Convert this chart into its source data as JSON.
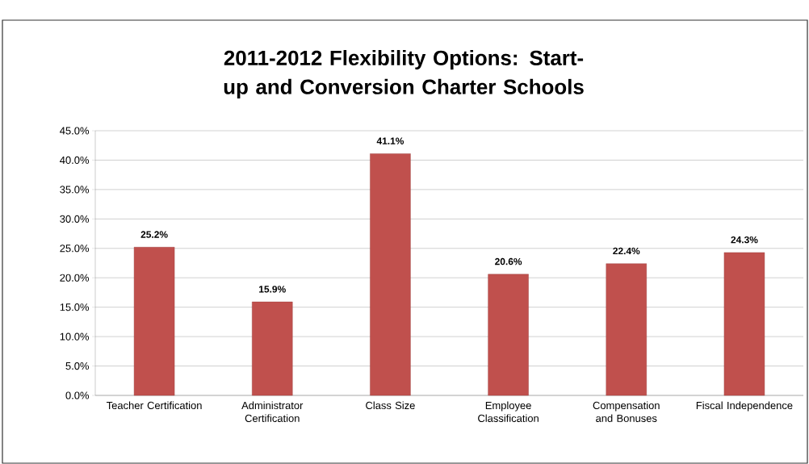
{
  "chart_data": {
    "type": "bar",
    "title": "2011-2012 Flexibility Options: Start-up and Conversion Charter Schools",
    "categories": [
      "Teacher Certification",
      "Administrator Certification",
      "Class Size",
      "Employee Classification",
      "Compensation and Bonuses",
      "Fiscal Independence"
    ],
    "values": [
      25.2,
      15.9,
      41.1,
      20.6,
      22.4,
      24.3
    ],
    "value_labels": [
      "25.2%",
      "15.9%",
      "41.1%",
      "20.6%",
      "22.4%",
      "24.3%"
    ],
    "color": "#c0504d",
    "ylim": [
      0,
      45
    ],
    "yticks": [
      {
        "value": 0,
        "label": "0.0%"
      },
      {
        "value": 5,
        "label": "5.0%"
      },
      {
        "value": 10,
        "label": "10.0%"
      },
      {
        "value": 15,
        "label": "15.0%"
      },
      {
        "value": 20,
        "label": "20.0%"
      },
      {
        "value": 25,
        "label": "25.0%"
      },
      {
        "value": 30,
        "label": "30.0%"
      },
      {
        "value": 35,
        "label": "35.0%"
      },
      {
        "value": 40,
        "label": "40.0%"
      },
      {
        "value": 45,
        "label": "45.0%"
      }
    ],
    "grid": "y"
  }
}
